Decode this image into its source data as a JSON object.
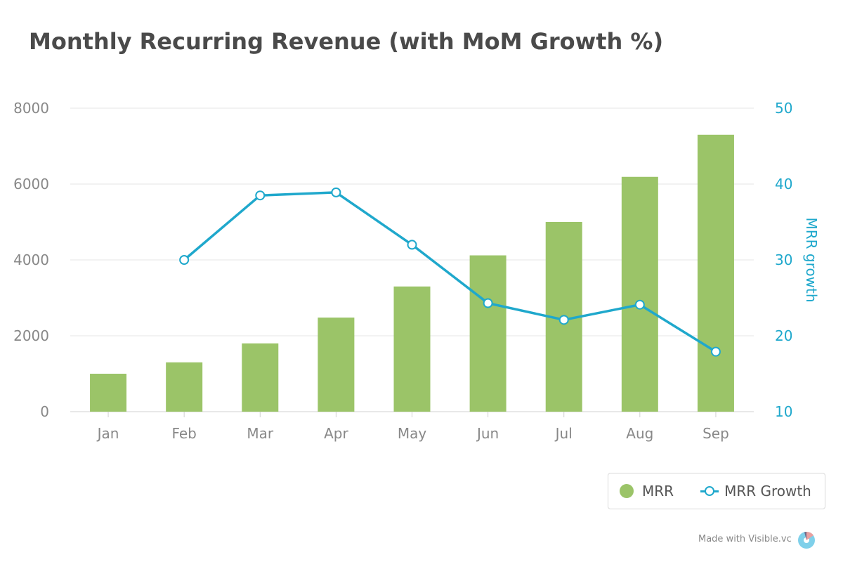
{
  "title": "Monthly Recurring Revenue (with MoM Growth %)",
  "colors": {
    "bar": "#9bc468",
    "line": "#1fa8cc",
    "grid": "#e6e6e6",
    "tick": "#888888"
  },
  "legend": {
    "mrr": "MRR",
    "growth": "MRR Growth"
  },
  "footer": {
    "text": "Made with Visible.vc"
  },
  "chart_data": {
    "type": "bar",
    "categories": [
      "Jan",
      "Feb",
      "Mar",
      "Apr",
      "May",
      "Jun",
      "Jul",
      "Aug",
      "Sep"
    ],
    "series": [
      {
        "name": "MRR",
        "type": "bar",
        "axis": "left",
        "values": [
          1000,
          1300,
          1800,
          2480,
          3300,
          4120,
          5000,
          6190,
          7300
        ]
      },
      {
        "name": "MRR Growth",
        "type": "line",
        "axis": "right",
        "values": [
          null,
          30,
          38.5,
          38.9,
          32,
          24.3,
          22.1,
          24.1,
          17.9
        ]
      }
    ],
    "y_left": {
      "min": 0,
      "max": 8000,
      "ticks": [
        0,
        2000,
        4000,
        6000,
        8000
      ]
    },
    "y_right": {
      "min": 10,
      "max": 50,
      "ticks": [
        10,
        20,
        30,
        40,
        50
      ],
      "label": "MRR growth"
    },
    "legend_position": "bottom-right"
  }
}
